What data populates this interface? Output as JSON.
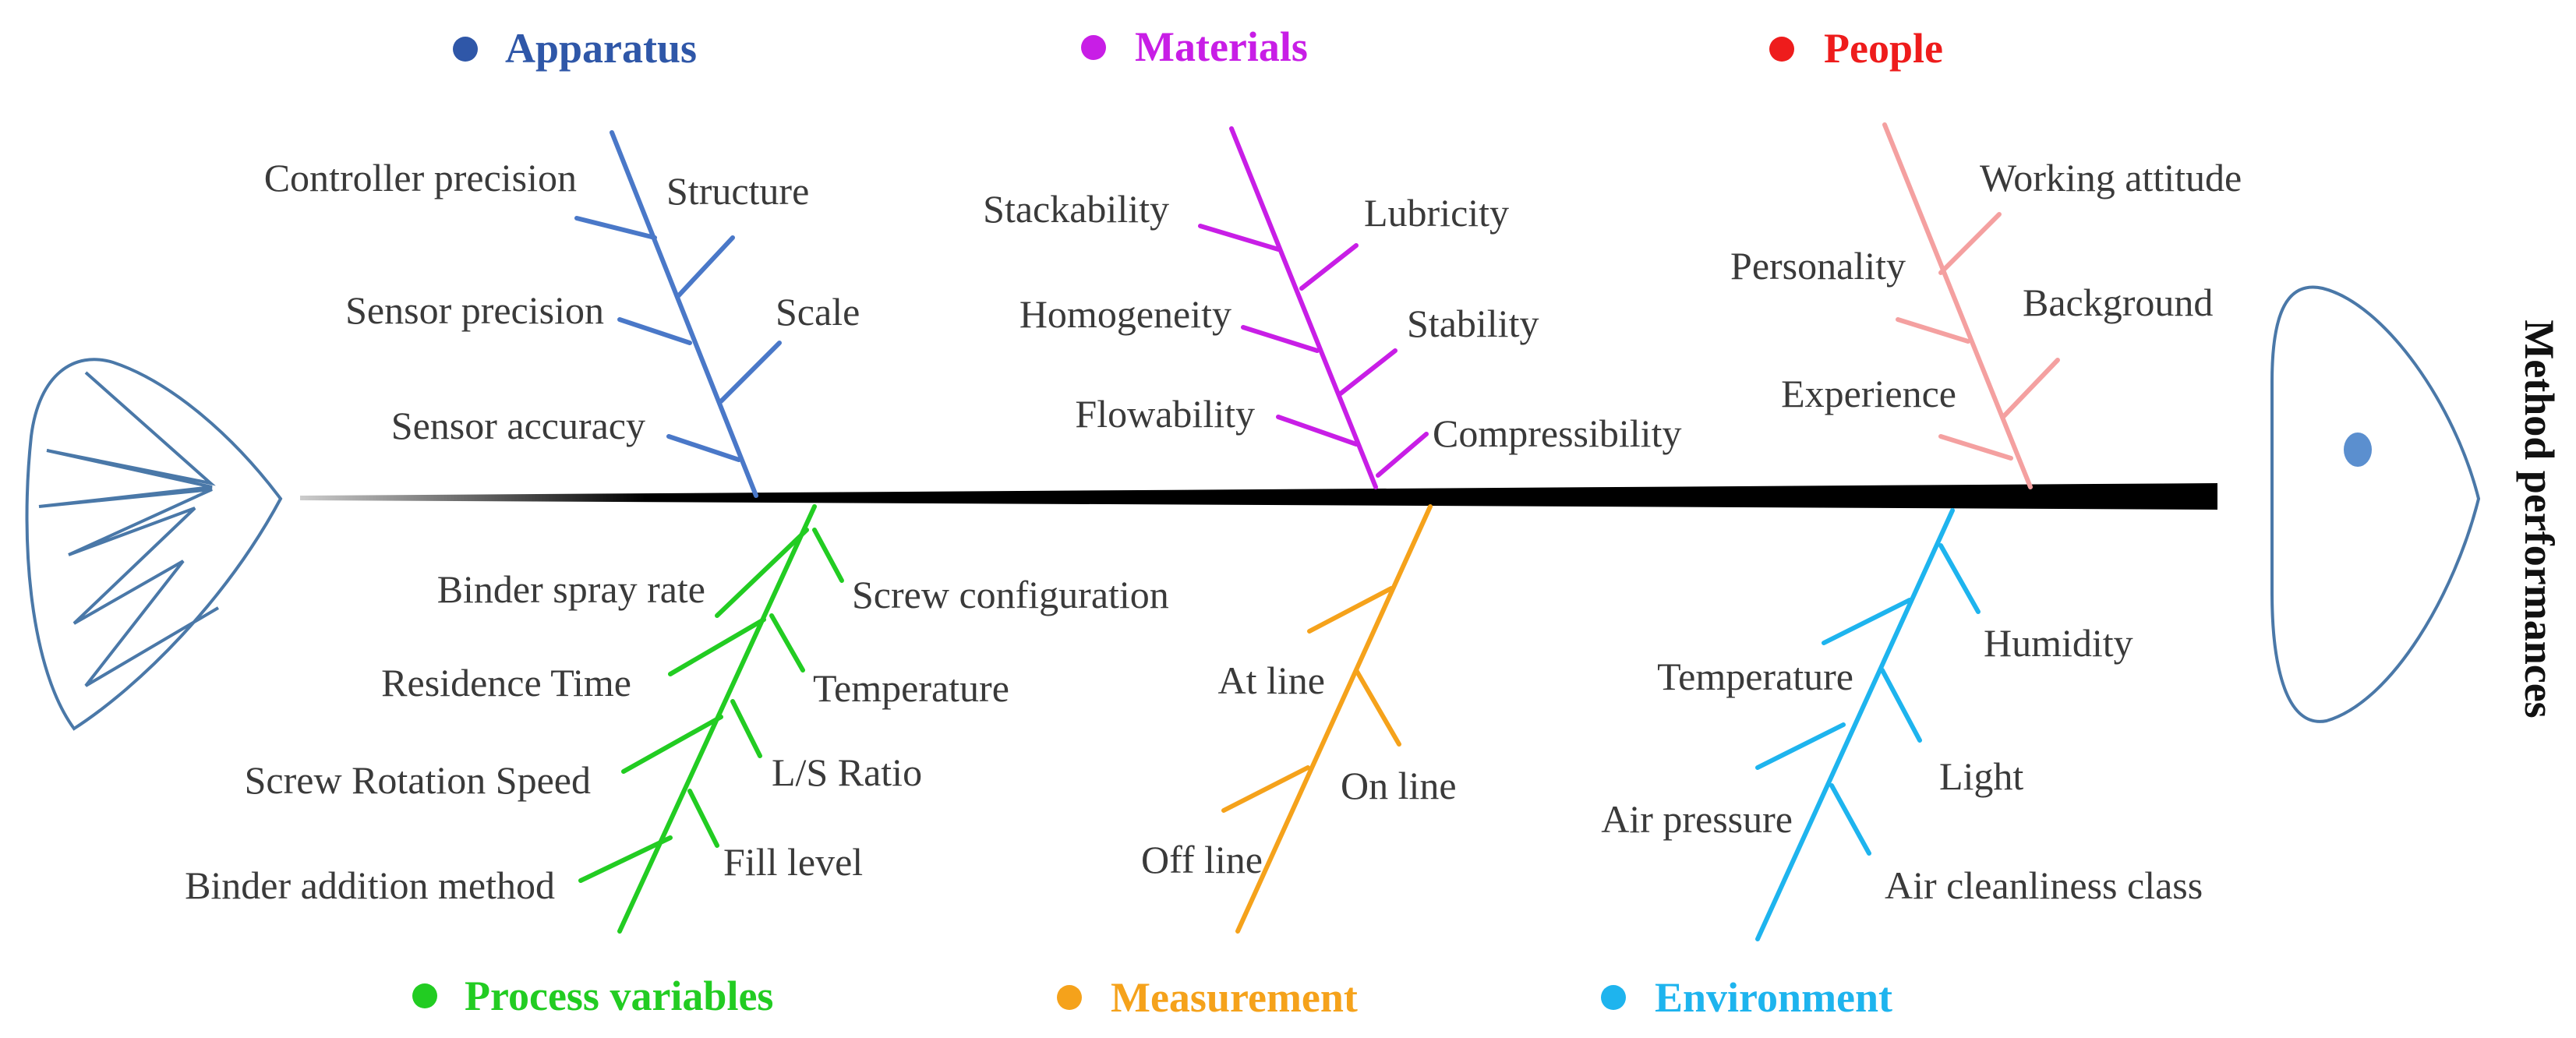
{
  "effect_label": "Method performances",
  "colors": {
    "spine": "#000000",
    "outline": "#4a78a8",
    "eye": "#5b8fcf",
    "text": "#3a3a3a"
  },
  "categories": {
    "apparatus": {
      "title": "Apparatus",
      "color": "#2f57a8",
      "line_color": "#4a78c8",
      "causes": [
        "Controller precision",
        "Structure",
        "Sensor precision",
        "Scale",
        "Sensor accuracy"
      ]
    },
    "materials": {
      "title": "Materials",
      "color": "#c81ee6",
      "line_color": "#c81ee6",
      "causes": [
        "Stackability",
        "Lubricity",
        "Homogeneity",
        "Stability",
        "Flowability",
        "Compressibility"
      ]
    },
    "people": {
      "title": "People",
      "color": "#ee1c1c",
      "line_color": "#f4a0a0",
      "causes": [
        "Working attitude",
        "Personality",
        "Background",
        "Experience"
      ]
    },
    "process": {
      "title": "Process variables",
      "color": "#22cc22",
      "line_color": "#22cc22",
      "causes": [
        "Binder spray rate",
        "Screw configuration",
        "Residence Time",
        "Temperature",
        "Screw Rotation Speed",
        "L/S Ratio",
        "Binder addition method",
        "Fill level"
      ]
    },
    "measurement": {
      "title": "Measurement",
      "color": "#f5a21b",
      "line_color": "#f5a21b",
      "causes": [
        "At line",
        "On line",
        "Off line"
      ]
    },
    "environment": {
      "title": "Environment",
      "color": "#1eb4ee",
      "line_color": "#1eb4ee",
      "causes": [
        "Humidity",
        "Temperature",
        "Light",
        "Air pressure",
        "Air cleanliness class"
      ]
    }
  }
}
